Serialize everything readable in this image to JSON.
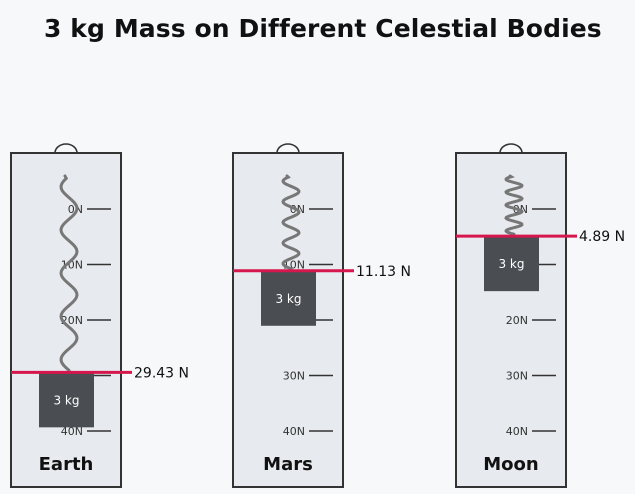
{
  "title": "3 kg Mass on Different Celestial Bodies",
  "mass_label": "3 kg",
  "scale_ticks": [
    "0N",
    "10N",
    "20N",
    "30N",
    "40N"
  ],
  "scale_max_N": 40,
  "bodies": [
    {
      "name": "Earth",
      "force_label": "29.43 N",
      "force_N": 29.43
    },
    {
      "name": "Mars",
      "force_label": "11.13 N",
      "force_N": 11.13
    },
    {
      "name": "Moon",
      "force_label": "4.89 N",
      "force_N": 4.89
    }
  ],
  "colors": {
    "background": "#f7f8fa",
    "scale_body": "#e7eaee",
    "outline": "#333333",
    "spring": "#777777",
    "mass_block": "#4a4e53",
    "indicator_line": "#d6174d",
    "text": "#111111"
  }
}
